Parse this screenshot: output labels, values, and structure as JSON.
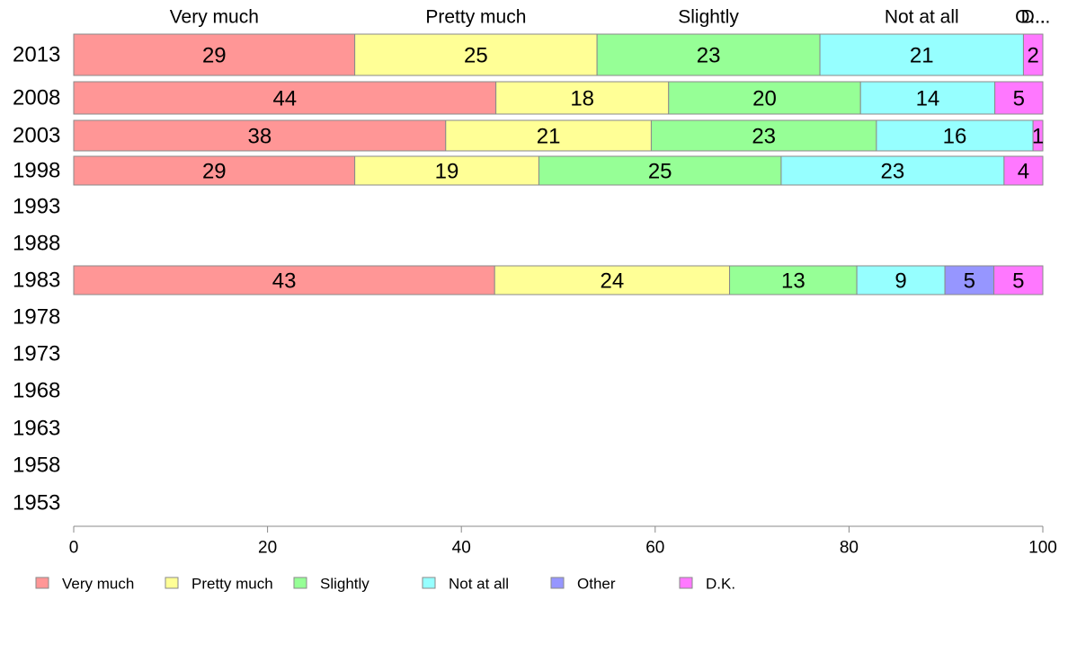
{
  "chart_data": {
    "type": "bar",
    "orientation": "horizontal",
    "stacked": true,
    "categories": [
      "2013",
      "2008",
      "2003",
      "1998",
      "1993",
      "1988",
      "1983",
      "1978",
      "1973",
      "1968",
      "1963",
      "1958",
      "1953"
    ],
    "series": [
      {
        "name": "Very much",
        "color": "#ff9696",
        "values": [
          29,
          44,
          38,
          29,
          null,
          null,
          43,
          null,
          null,
          null,
          null,
          null,
          null
        ]
      },
      {
        "name": "Pretty much",
        "color": "#ffff96",
        "values": [
          25,
          18,
          21,
          19,
          null,
          null,
          24,
          null,
          null,
          null,
          null,
          null,
          null
        ]
      },
      {
        "name": "Slightly",
        "color": "#96ff96",
        "values": [
          23,
          20,
          23,
          25,
          null,
          null,
          13,
          null,
          null,
          null,
          null,
          null,
          null
        ]
      },
      {
        "name": "Not at all",
        "color": "#96ffff",
        "values": [
          21,
          14,
          16,
          23,
          null,
          null,
          9,
          null,
          null,
          null,
          null,
          null,
          null
        ]
      },
      {
        "name": "Other",
        "color": "#9696ff",
        "values": [
          0,
          0,
          0,
          0,
          null,
          null,
          5,
          null,
          null,
          null,
          null,
          null,
          null
        ]
      },
      {
        "name": "D.K.",
        "color": "#ff78ff",
        "values": [
          2,
          5,
          1,
          4,
          null,
          null,
          5,
          null,
          null,
          null,
          null,
          null,
          null
        ]
      }
    ],
    "top_labels": [
      "Very much",
      "Pretty much",
      "Slightly",
      "Not at all",
      "O...",
      "D..."
    ],
    "xlim": [
      0,
      100
    ],
    "xticks": [
      0,
      20,
      40,
      60,
      80,
      100
    ],
    "title": "",
    "xlabel": "",
    "ylabel": "",
    "grid": false,
    "legend_position": "bottom"
  }
}
